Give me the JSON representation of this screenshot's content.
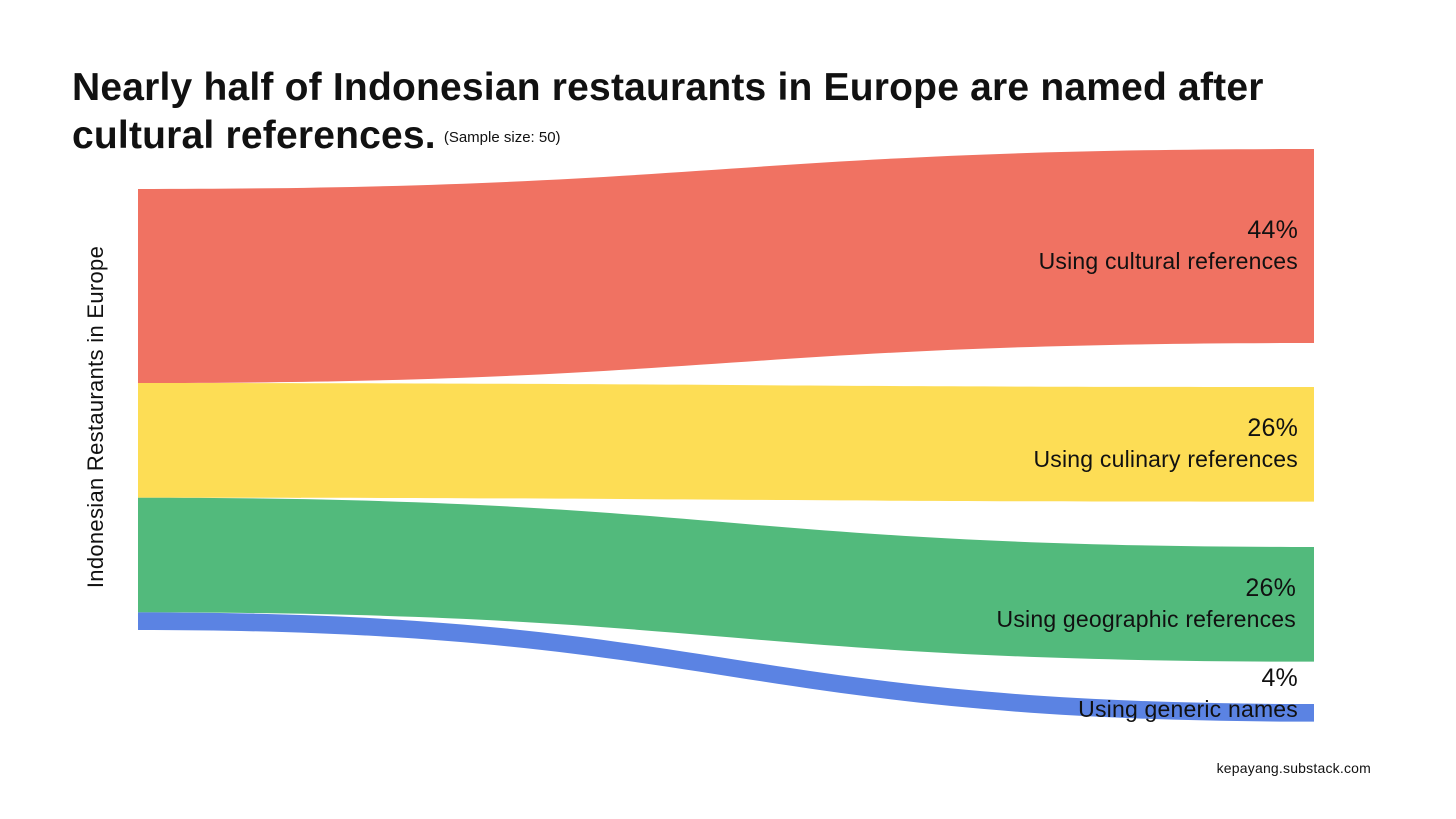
{
  "header": {
    "title": "Nearly half of Indonesian restaurants in Europe are named after cultural references.",
    "subtitle": "(Sample size: 50)"
  },
  "footer": {
    "source": "kepayang.substack.com"
  },
  "chart_data": {
    "type": "sankey",
    "title": "Nearly half of Indonesian restaurants in Europe are named after cultural references.",
    "subtitle": "(Sample size: 50)",
    "source_node": "Indonesian Restaurants in Europe",
    "flows": [
      {
        "value": 44,
        "pct_label": "44%",
        "name": "Using cultural references",
        "color": "#F07262"
      },
      {
        "value": 26,
        "pct_label": "26%",
        "name": "Using culinary references",
        "color": "#FDDD55"
      },
      {
        "value": 26,
        "pct_label": "26%",
        "name": "Using geographic references",
        "color": "#52BA7C"
      },
      {
        "value": 4,
        "pct_label": "4%",
        "name": "Using generic names",
        "color": "#5B83E3"
      }
    ]
  }
}
